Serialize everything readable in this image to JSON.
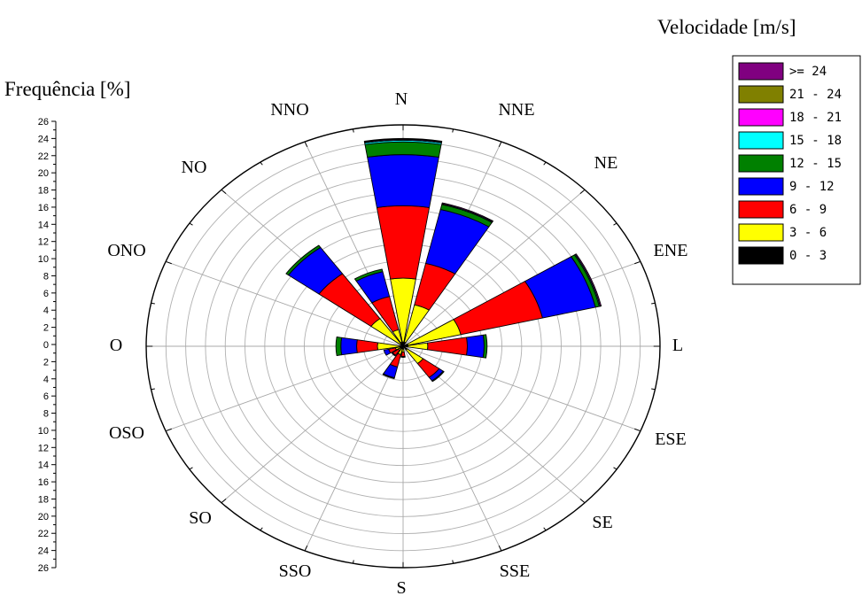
{
  "chart_data": {
    "type": "windrose",
    "legend_title": "Velocidade [m/s]",
    "radial_axis_title": "Frequência [%]",
    "rmax": 26,
    "radial_ticks": [
      26,
      24,
      22,
      20,
      18,
      16,
      14,
      12,
      10,
      8,
      6,
      4,
      2,
      0,
      2,
      4,
      6,
      8,
      10,
      12,
      14,
      16,
      18,
      20,
      22,
      24,
      26
    ],
    "directions": [
      "N",
      "NNE",
      "NE",
      "ENE",
      "L",
      "ESE",
      "SE",
      "SSE",
      "S",
      "SSO",
      "SO",
      "OSO",
      "O",
      "ONO",
      "NO",
      "NNO"
    ],
    "bins": [
      {
        "label": "0 - 3",
        "color": "#000000"
      },
      {
        "label": "3 - 6",
        "color": "#ffff00"
      },
      {
        "label": "6 - 9",
        "color": "#ff0000"
      },
      {
        "label": "9 - 12",
        "color": "#0000ff"
      },
      {
        "label": "12 - 15",
        "color": "#008000"
      },
      {
        "label": "15 - 18",
        "color": "#00ffff"
      },
      {
        "label": "18 - 21",
        "color": "#ff00ff"
      },
      {
        "label": "21 - 24",
        "color": "#808000"
      },
      {
        "label": ">= 24",
        "color": "#800080"
      }
    ],
    "cumulative_frequency": [
      [
        0.5,
        8.0,
        16.5,
        22.5,
        24.0,
        24.2,
        24.3,
        24.3,
        24.4
      ],
      [
        0.5,
        5.0,
        10.0,
        16.5,
        17.1,
        17.2,
        17.3,
        17.3,
        17.3
      ],
      [
        0,
        0,
        0,
        0,
        0,
        0,
        0,
        0,
        0
      ],
      [
        0.5,
        6.0,
        14.5,
        20.0,
        20.4,
        20.5,
        20.6,
        20.6,
        20.6
      ],
      [
        0.5,
        2.5,
        6.5,
        8.2,
        8.5,
        8.5,
        8.5,
        8.5,
        8.5
      ],
      [
        0,
        0,
        0,
        0,
        0,
        0,
        0,
        0,
        0
      ],
      [
        0.5,
        2.5,
        4.5,
        5.0,
        5.1,
        5.1,
        5.1,
        5.1,
        5.1
      ],
      [
        0,
        0,
        0,
        0,
        0,
        0,
        0,
        0,
        0
      ],
      [
        0.3,
        0.7,
        1.2,
        1.3,
        1.3,
        1.3,
        1.3,
        1.3,
        1.3
      ],
      [
        0.3,
        1.0,
        2.5,
        3.8,
        3.9,
        3.9,
        3.9,
        3.9,
        3.9
      ],
      [
        0.3,
        0.6,
        1.3,
        1.4,
        1.4,
        1.4,
        1.4,
        1.4,
        1.4
      ],
      [
        0.3,
        0.8,
        1.5,
        2.0,
        2.0,
        2.0,
        2.0,
        2.0,
        2.0
      ],
      [
        0.3,
        2.6,
        4.7,
        6.3,
        6.8,
        6.8,
        6.8,
        6.8,
        6.8
      ],
      [
        0,
        0,
        0,
        0,
        0,
        0,
        0,
        0,
        0
      ],
      [
        0.3,
        4.0,
        10.5,
        14.3,
        14.6,
        14.6,
        14.6,
        14.6,
        14.6
      ],
      [
        0.5,
        2.0,
        6.0,
        9.0,
        9.3,
        9.3,
        9.3,
        9.3,
        9.3
      ]
    ]
  }
}
